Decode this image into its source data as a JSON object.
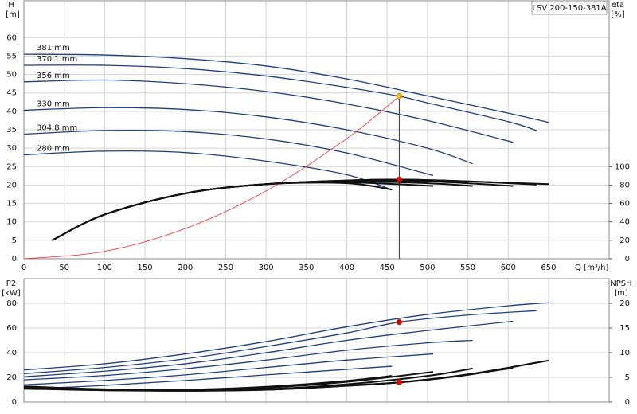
{
  "chart_data": [
    {
      "type": "line",
      "title": "LSV 200-150-381A",
      "y_label": "H",
      "y_unit": "[m]",
      "y2_label": "eta",
      "y2_unit": "[%]",
      "x_label": "Q [m³/h]",
      "xlim": [
        0,
        725
      ],
      "xticks": [
        0,
        50,
        100,
        150,
        200,
        250,
        300,
        350,
        400,
        450,
        500,
        550,
        600,
        650
      ],
      "ylim": [
        0,
        70
      ],
      "yticks": [
        0,
        5,
        10,
        15,
        20,
        25,
        30,
        35,
        40,
        45,
        50,
        55,
        60
      ],
      "y2lim": [
        0,
        280
      ],
      "y2ticks": [
        0,
        20,
        40,
        60,
        80,
        100
      ],
      "grid": true,
      "series": [
        {
          "name": "381 mm",
          "color": "#1d3f7f",
          "x": [
            0,
            100,
            200,
            300,
            400,
            500,
            600,
            650
          ],
          "values": [
            55.5,
            55.3,
            54.3,
            52.3,
            48.8,
            44.2,
            39.5,
            37
          ]
        },
        {
          "name": "370.1 mm",
          "color": "#1d3f7f",
          "x": [
            0,
            100,
            200,
            300,
            400,
            465,
            500,
            600,
            635
          ],
          "values": [
            52.5,
            52.5,
            51.6,
            49.6,
            46.5,
            44.1,
            42.3,
            37.2,
            34.8
          ]
        },
        {
          "name": "356 mm",
          "color": "#1d3f7f",
          "x": [
            0,
            100,
            200,
            300,
            400,
            500,
            606
          ],
          "values": [
            48,
            48.5,
            47.5,
            45.4,
            42,
            37.5,
            31.6
          ]
        },
        {
          "name": "330 mm",
          "color": "#1d3f7f",
          "x": [
            0,
            100,
            200,
            300,
            400,
            500,
            556
          ],
          "values": [
            40.3,
            41,
            40.5,
            38.5,
            35,
            30,
            25.8
          ]
        },
        {
          "name": "304.8 mm",
          "color": "#1d3f7f",
          "x": [
            0,
            100,
            200,
            300,
            400,
            507
          ],
          "values": [
            33.8,
            34.8,
            34.5,
            32.5,
            28.7,
            22.6
          ]
        },
        {
          "name": "280 mm",
          "color": "#1d3f7f",
          "x": [
            0,
            100,
            200,
            300,
            400,
            456
          ],
          "values": [
            28.2,
            29.2,
            28.8,
            26.5,
            22.8,
            18.7
          ]
        },
        {
          "color": "#ff2020",
          "x": [
            0,
            100,
            200,
            300,
            400,
            465
          ],
          "values": [
            0,
            2,
            8.2,
            18.4,
            32.6,
            44.1
          ]
        },
        {
          "color": "#111111",
          "axis": "y2",
          "x": [
            35,
            100,
            200,
            300,
            400,
            465,
            550,
            650
          ],
          "values": [
            20,
            48,
            71,
            81,
            85,
            86,
            84,
            81
          ]
        },
        {
          "color": "#111111",
          "axis": "y2",
          "x": [
            35,
            100,
            200,
            300,
            400,
            465,
            550,
            635
          ],
          "values": [
            20,
            48,
            71,
            81,
            85,
            86,
            84,
            80.5
          ]
        },
        {
          "color": "#111111",
          "axis": "y2",
          "x": [
            35,
            100,
            200,
            300,
            400,
            500,
            606
          ],
          "values": [
            20,
            48,
            71,
            81,
            84,
            84,
            79
          ]
        },
        {
          "color": "#111111",
          "axis": "y2",
          "x": [
            35,
            100,
            200,
            300,
            400,
            500,
            556
          ],
          "values": [
            20,
            48,
            71,
            81,
            84,
            82,
            79
          ]
        },
        {
          "color": "#111111",
          "axis": "y2",
          "x": [
            35,
            100,
            200,
            300,
            400,
            507
          ],
          "values": [
            20,
            48,
            71,
            81,
            83,
            79
          ]
        },
        {
          "color": "#111111",
          "axis": "y2",
          "x": [
            35,
            100,
            200,
            300,
            400,
            456
          ],
          "values": [
            20,
            48,
            71,
            81,
            82,
            75
          ]
        },
        {
          "color": "#f5b800",
          "marker": true,
          "x": [
            465
          ],
          "values": [
            44.1
          ]
        },
        {
          "color": "#e60000",
          "marker": true,
          "axis": "y2",
          "x": [
            465
          ],
          "values": [
            86
          ]
        }
      ]
    },
    {
      "type": "line",
      "y_label": "P2",
      "y_unit": "[kW]",
      "y2_label": "NPSH",
      "y2_unit": "[m]",
      "ylim": [
        0,
        100
      ],
      "yticks": [
        0,
        20,
        40,
        60,
        80
      ],
      "y2lim": [
        0,
        25
      ],
      "y2ticks": [
        0,
        5,
        10,
        15,
        20
      ],
      "grid": true,
      "series": [
        {
          "color": "#1d3f7f",
          "x": [
            0,
            100,
            200,
            300,
            400,
            500,
            600,
            650
          ],
          "values": [
            26,
            31,
            39,
            49,
            61,
            71,
            78,
            80.5
          ]
        },
        {
          "color": "#1d3f7f",
          "x": [
            0,
            100,
            200,
            300,
            400,
            465,
            550,
            635
          ],
          "values": [
            23,
            28,
            35,
            45,
            56,
            64.8,
            70.5,
            74
          ]
        },
        {
          "color": "#1d3f7f",
          "x": [
            0,
            100,
            200,
            300,
            400,
            500,
            606
          ],
          "values": [
            20.5,
            25,
            31,
            40,
            50,
            58,
            65.5
          ]
        },
        {
          "color": "#1d3f7f",
          "x": [
            0,
            100,
            200,
            300,
            400,
            500,
            556
          ],
          "values": [
            18,
            21.5,
            27,
            34,
            42,
            48,
            50
          ]
        },
        {
          "color": "#1d3f7f",
          "x": [
            0,
            100,
            200,
            300,
            400,
            507
          ],
          "values": [
            14,
            17.5,
            22,
            28,
            34,
            39
          ]
        },
        {
          "color": "#1d3f7f",
          "x": [
            0,
            100,
            200,
            300,
            400,
            456
          ],
          "values": [
            10.6,
            13.5,
            17.5,
            22,
            26.5,
            29
          ]
        },
        {
          "color": "#111111",
          "axis": "y2",
          "x": [
            0,
            100,
            200,
            300,
            400,
            465,
            550,
            650
          ],
          "values": [
            3.2,
            2.6,
            2.4,
            2.6,
            3.4,
            4,
            5.6,
            8.4
          ]
        },
        {
          "color": "#111111",
          "axis": "y2",
          "x": [
            0,
            100,
            200,
            300,
            400,
            465,
            550,
            635
          ],
          "values": [
            3.1,
            2.5,
            2.3,
            2.5,
            3.3,
            4,
            5.5,
            8
          ]
        },
        {
          "color": "#111111",
          "axis": "y2",
          "x": [
            0,
            100,
            200,
            300,
            400,
            500,
            606
          ],
          "values": [
            3,
            2.5,
            2.3,
            2.5,
            3.3,
            4.5,
            6.9
          ]
        },
        {
          "color": "#111111",
          "axis": "y2",
          "x": [
            0,
            100,
            200,
            300,
            400,
            500,
            556
          ],
          "values": [
            2.9,
            2.4,
            2.3,
            2.6,
            3.6,
            5.3,
            6.8
          ]
        },
        {
          "color": "#111111",
          "axis": "y2",
          "x": [
            0,
            100,
            200,
            300,
            400,
            507
          ],
          "values": [
            2.8,
            2.4,
            2.4,
            2.9,
            4.1,
            6.1
          ]
        },
        {
          "color": "#111111",
          "axis": "y2",
          "x": [
            0,
            100,
            200,
            300,
            400,
            456
          ],
          "values": [
            2.7,
            2.4,
            2.5,
            3.1,
            4.3,
            5.3
          ]
        },
        {
          "color": "#e60000",
          "marker": true,
          "x": [
            465
          ],
          "values": [
            64.8
          ]
        },
        {
          "color": "#e60000",
          "marker": true,
          "axis": "y2",
          "x": [
            465
          ],
          "values": [
            4
          ]
        }
      ]
    }
  ]
}
